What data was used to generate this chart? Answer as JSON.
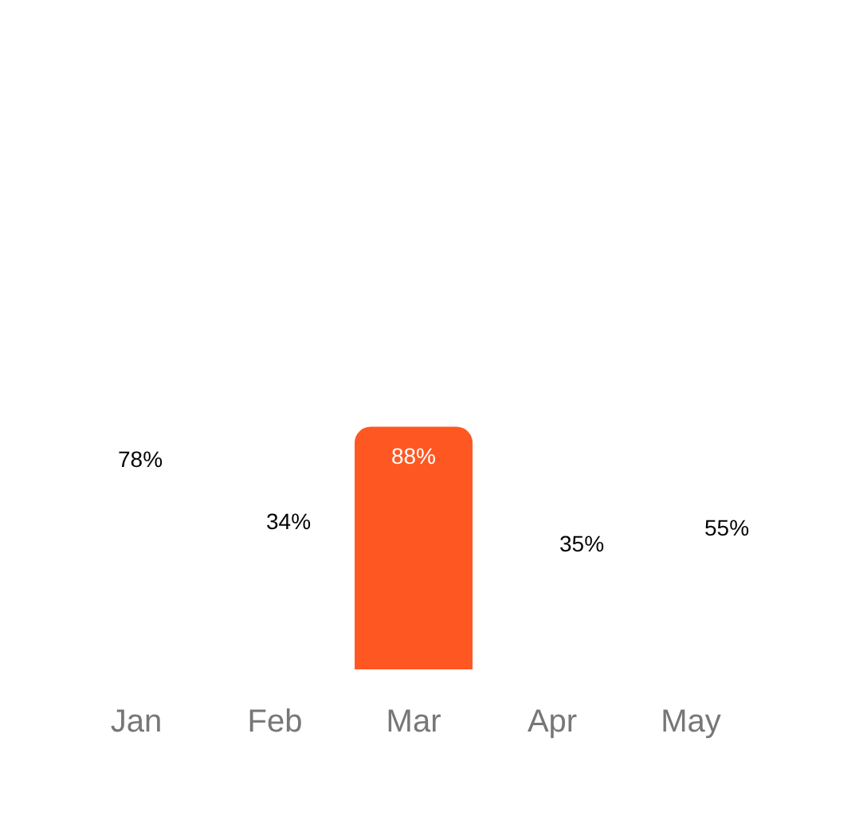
{
  "chart_data": {
    "type": "bar",
    "categories": [
      "Jan",
      "Feb",
      "Mar",
      "Apr",
      "May"
    ],
    "values": [
      null,
      null,
      88,
      null,
      null
    ],
    "colors": [
      "#ffffff",
      "#ffffff",
      "#ff5722",
      "#ffffff",
      "#ffffff"
    ],
    "value_labels": [
      null,
      null,
      "88%",
      null,
      null
    ],
    "annotations": [
      "78%",
      "34%",
      "35%",
      "55%"
    ]
  }
}
